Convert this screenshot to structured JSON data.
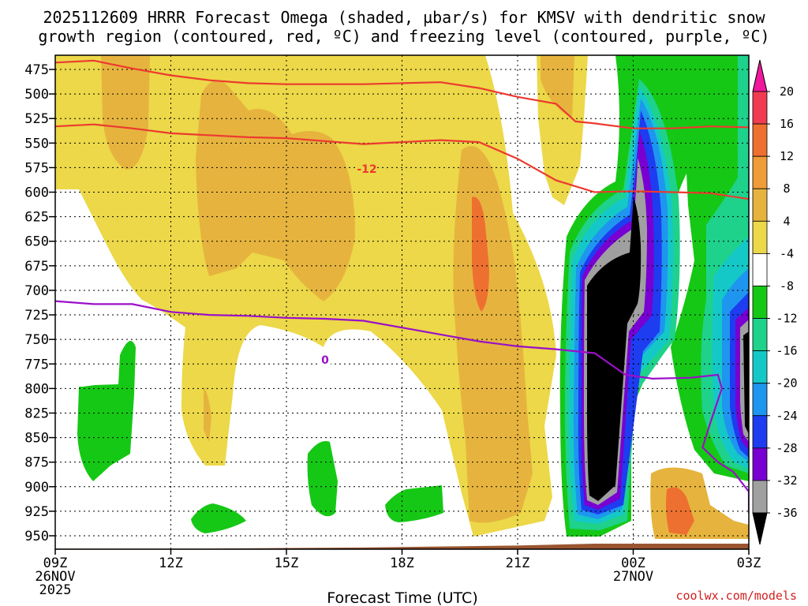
{
  "chart_data": {
    "type": "heatmap",
    "title_line1": "2025112609 HRRR Forecast Omega (shaded, µbar/s) for KMSV with dendritic snow",
    "title_line2": "growth region (contoured, red, ºC) and freezing level (contoured, purple, ºC)",
    "xlabel": "Forecast Time (UTC)",
    "ylabel": "",
    "y_ticks": [
      "475",
      "500",
      "525",
      "550",
      "575",
      "600",
      "625",
      "650",
      "675",
      "700",
      "725",
      "750",
      "775",
      "800",
      "825",
      "850",
      "875",
      "900",
      "925",
      "950"
    ],
    "x_ticks": [
      {
        "hour": 0,
        "label": "09Z",
        "sub1": "26NOV",
        "sub2": "2025"
      },
      {
        "hour": 3,
        "label": "12Z",
        "sub1": "",
        "sub2": ""
      },
      {
        "hour": 6,
        "label": "15Z",
        "sub1": "",
        "sub2": ""
      },
      {
        "hour": 9,
        "label": "18Z",
        "sub1": "",
        "sub2": ""
      },
      {
        "hour": 12,
        "label": "21Z",
        "sub1": "",
        "sub2": ""
      },
      {
        "hour": 15,
        "label": "00Z",
        "sub1": "27NOV",
        "sub2": ""
      },
      {
        "hour": 18,
        "label": "03Z",
        "sub1": "",
        "sub2": ""
      }
    ],
    "xlim_hours": [
      0,
      18
    ],
    "ylim_hpa": [
      462,
      965
    ],
    "colorbar": {
      "labels": [
        "20",
        "16",
        "12",
        "8",
        "4",
        "-4",
        "-8",
        "-12",
        "-16",
        "-20",
        "-24",
        "-28",
        "-32",
        "-36"
      ],
      "colors": [
        "#f03c50",
        "#ee7030",
        "#f09c38",
        "#e6b43e",
        "#ecd848",
        "#ffffff",
        "#15c815",
        "#1ed28c",
        "#15c8c8",
        "#1e96f0",
        "#1e3cf0",
        "#7800d2",
        "#a0a0a0",
        "#000000"
      ],
      "top_arrow": "#f0189c",
      "bottom_arrow": "#000000"
    },
    "contour_labels": {
      "dgz": "-12",
      "freezing": "0"
    },
    "red_contour_upper": [
      [
        0,
        468
      ],
      [
        1,
        466
      ],
      [
        2,
        474
      ],
      [
        3,
        481
      ],
      [
        4,
        486
      ],
      [
        5,
        489
      ],
      [
        6,
        490
      ],
      [
        7,
        490
      ],
      [
        8,
        490
      ],
      [
        9,
        489
      ],
      [
        10,
        488
      ],
      [
        11,
        494
      ],
      [
        12,
        503
      ],
      [
        13,
        510
      ],
      [
        13.5,
        528
      ],
      [
        14,
        530
      ],
      [
        15,
        535
      ],
      [
        16,
        535
      ],
      [
        17,
        533
      ],
      [
        18,
        534
      ]
    ],
    "red_contour_lower": [
      [
        0,
        533
      ],
      [
        1,
        531
      ],
      [
        2,
        535
      ],
      [
        3,
        540
      ],
      [
        5,
        544
      ],
      [
        6,
        545
      ],
      [
        8,
        551
      ],
      [
        10,
        547
      ],
      [
        11,
        549
      ],
      [
        12,
        566
      ],
      [
        13,
        588
      ],
      [
        14,
        600
      ],
      [
        15,
        599
      ],
      [
        16,
        600
      ],
      [
        17,
        601
      ],
      [
        18,
        607
      ]
    ],
    "freezing_contour": [
      [
        0,
        711
      ],
      [
        1,
        714
      ],
      [
        2,
        714
      ],
      [
        3,
        722
      ],
      [
        4,
        725
      ],
      [
        5,
        726
      ],
      [
        6,
        728
      ],
      [
        7,
        729
      ],
      [
        8,
        731
      ],
      [
        9,
        738
      ],
      [
        10,
        745
      ],
      [
        11,
        752
      ],
      [
        12,
        757
      ],
      [
        13,
        760
      ],
      [
        14,
        764
      ],
      [
        14.8,
        786
      ],
      [
        15.5,
        790
      ],
      [
        16.5,
        789
      ],
      [
        17.2,
        786
      ],
      [
        17.3,
        800
      ],
      [
        17,
        835
      ],
      [
        16.8,
        860
      ],
      [
        17.2,
        875
      ],
      [
        17.6,
        885
      ],
      [
        18,
        905
      ],
      [
        18,
        920
      ],
      [
        18,
        927
      ]
    ],
    "ground": [
      [
        0,
        963
      ],
      [
        4,
        963
      ],
      [
        8,
        962
      ],
      [
        12,
        960
      ],
      [
        14,
        958
      ],
      [
        18,
        958
      ]
    ]
  },
  "footer": {
    "credit": "coolwx.com/models"
  }
}
